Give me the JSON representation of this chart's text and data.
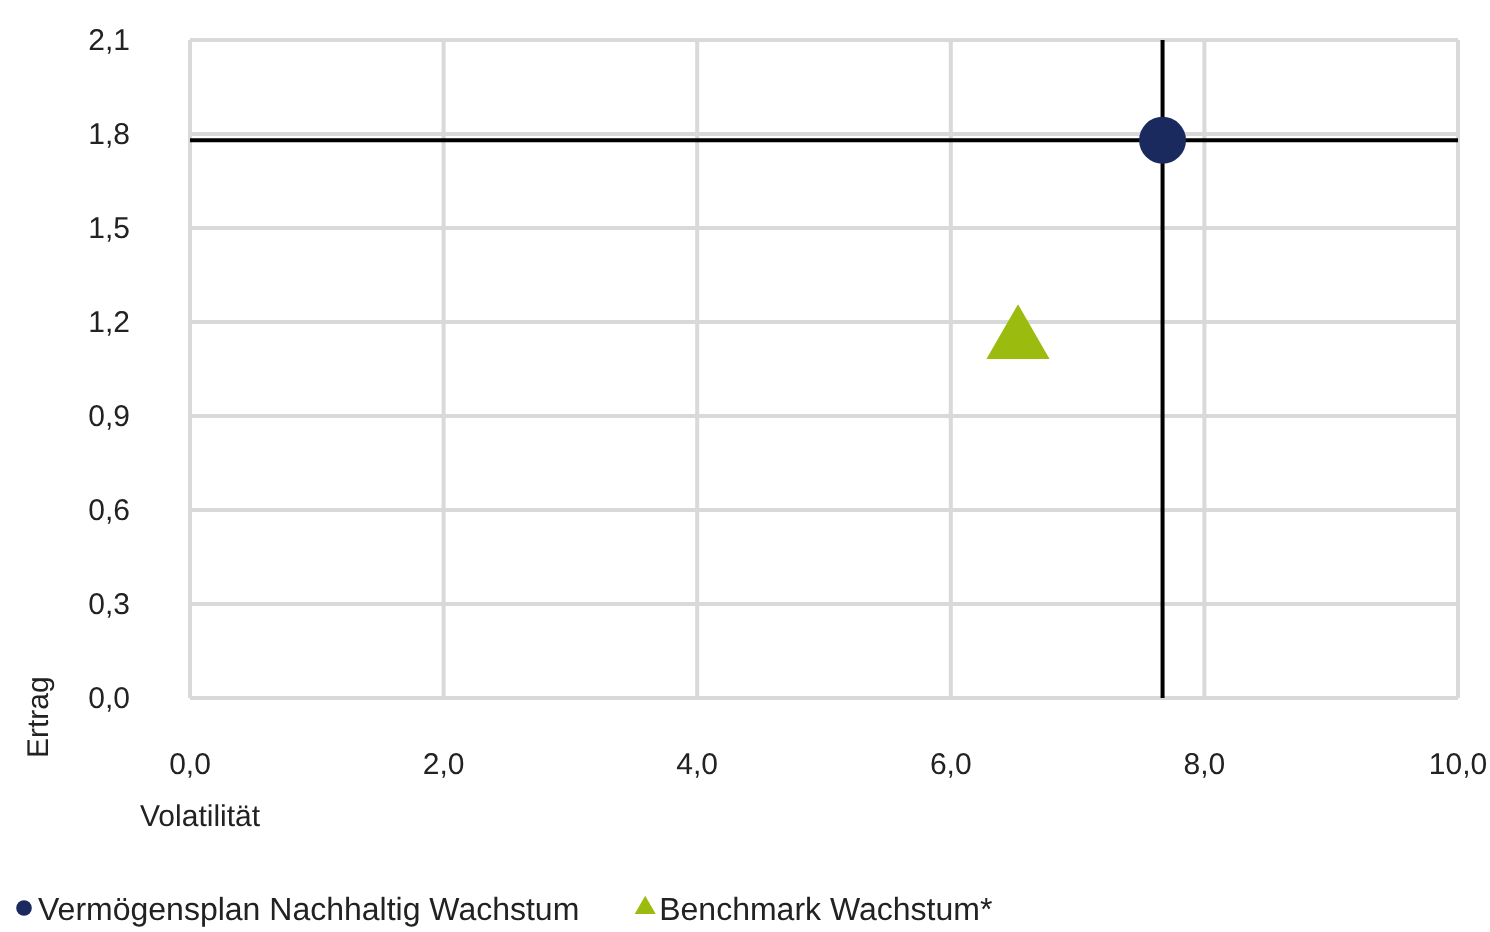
{
  "chart_data": {
    "type": "scatter",
    "xlabel": "Volatilität",
    "ylabel": "Ertrag",
    "xlim": [
      0,
      10
    ],
    "xticks": [
      {
        "value": 0,
        "label": "0,0"
      },
      {
        "value": 2,
        "label": "2,0"
      },
      {
        "value": 4,
        "label": "4,0"
      },
      {
        "value": 6,
        "label": "6,0"
      },
      {
        "value": 8,
        "label": "8,0"
      },
      {
        "value": 10,
        "label": "10,0"
      }
    ],
    "ylim": [
      0,
      2.1
    ],
    "yticks": [
      {
        "value": 0,
        "label": "0,0"
      },
      {
        "value": 0.3,
        "label": "0,3"
      },
      {
        "value": 0.6,
        "label": "0,6"
      },
      {
        "value": 0.9,
        "label": "0,9"
      },
      {
        "value": 1.2,
        "label": "1,2"
      },
      {
        "value": 1.5,
        "label": "1,5"
      },
      {
        "value": 1.8,
        "label": "1,8"
      },
      {
        "value": 2.1,
        "label": "2,1"
      }
    ],
    "grid": true,
    "legend": "bottom",
    "ref_lines": [
      {
        "axis": "x",
        "value": 7.67,
        "color": "#000000"
      },
      {
        "axis": "y",
        "value": 1.78,
        "color": "#000000"
      }
    ],
    "series": [
      {
        "name": "Vermögensplan Nachhaltig Wachstum",
        "color": "#1b2a5e",
        "marker": "circle",
        "x": [
          7.67
        ],
        "values": [
          1.78
        ]
      },
      {
        "name": "Benchmark Wachstum*",
        "color": "#9bbb0e",
        "marker": "triangle",
        "x": [
          6.53
        ],
        "values": [
          1.14
        ]
      }
    ]
  }
}
